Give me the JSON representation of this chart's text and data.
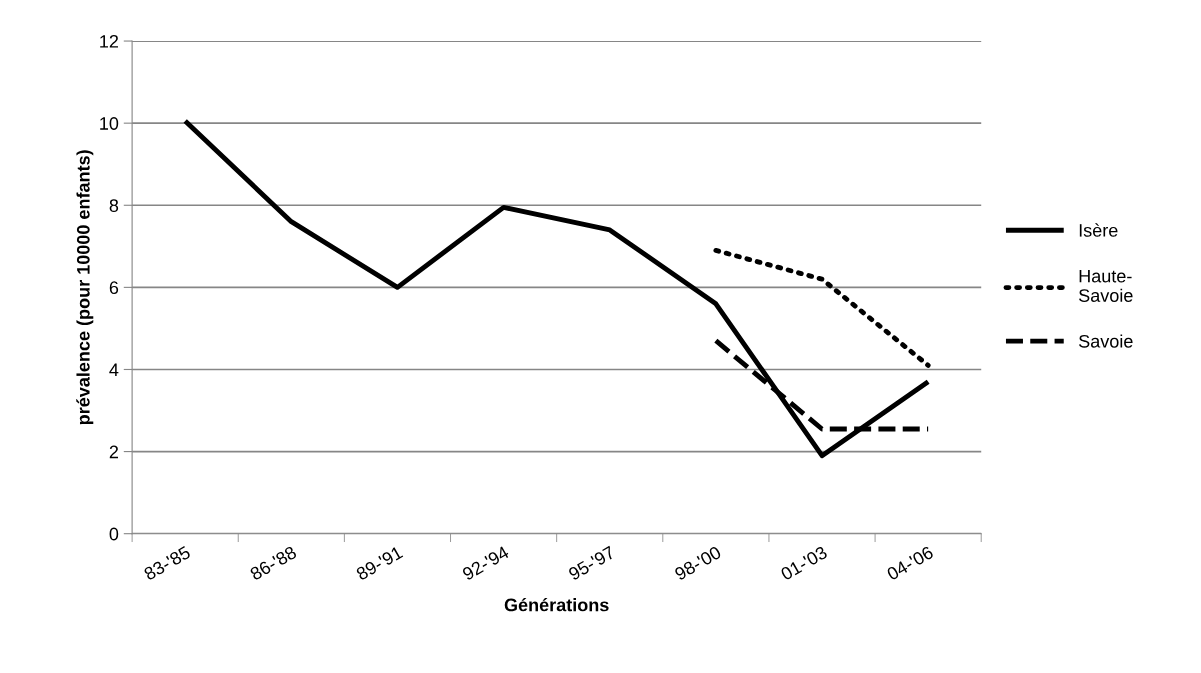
{
  "chart_data": {
    "type": "line",
    "xlabel": "Générations",
    "ylabel": "prévalence (pour 10000 enfants)",
    "categories": [
      "83-'85",
      "86-'88",
      "89-'91",
      "92-'94",
      "95-'97",
      "98-'00",
      "01-'03",
      "04-'06"
    ],
    "series": [
      {
        "name": "Isère",
        "color": "#000000",
        "line_style": "solid",
        "values": [
          10.05,
          7.6,
          6.0,
          7.95,
          7.4,
          5.6,
          1.9,
          3.7
        ]
      },
      {
        "name": "Haute-\nSavoie",
        "color": "#000000",
        "line_style": "dotted",
        "values": [
          null,
          null,
          null,
          null,
          null,
          6.9,
          6.2,
          4.1
        ]
      },
      {
        "name": "Savoie",
        "color": "#000000",
        "line_style": "dashed",
        "values": [
          null,
          null,
          null,
          null,
          null,
          4.7,
          2.55,
          2.55
        ]
      }
    ],
    "ylim": [
      0,
      12
    ],
    "yticks": [
      0,
      2,
      4,
      6,
      8,
      10,
      12
    ],
    "grid": "y",
    "legend": "right",
    "marker": "none"
  }
}
